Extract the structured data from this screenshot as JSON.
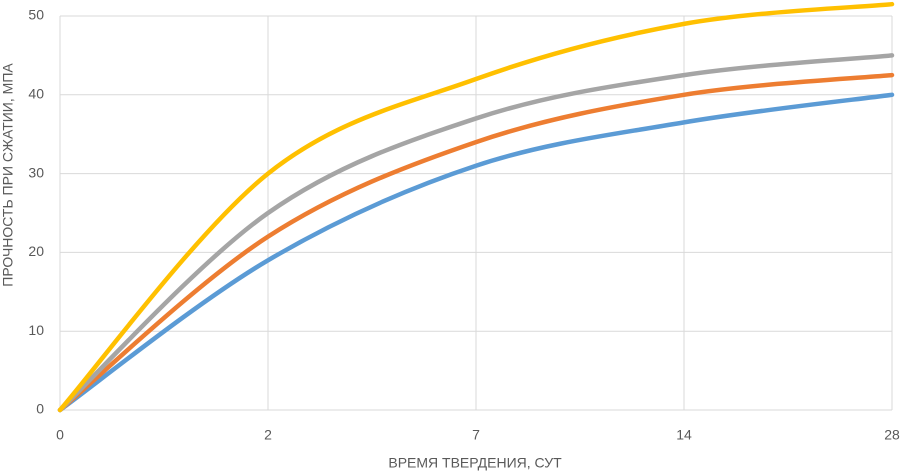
{
  "chart_data": {
    "type": "line",
    "x_label": "ВРЕМЯ ТВЕРДЕНИЯ, СУТ",
    "y_label": "ПРОЧНОСТЬ ПРИ СЖАТИИ, МПА",
    "categories": [
      "0",
      "2",
      "7",
      "14",
      "28"
    ],
    "series": [
      {
        "color": "#5b9bd5",
        "values": [
          0,
          19,
          31,
          36.5,
          40
        ]
      },
      {
        "color": "#ed7d31",
        "values": [
          0,
          22,
          34,
          40,
          42.5
        ]
      },
      {
        "color": "#a5a5a5",
        "values": [
          0,
          25,
          37,
          42.5,
          45
        ]
      },
      {
        "color": "#ffc000",
        "values": [
          0,
          30,
          42,
          49,
          51.5
        ]
      }
    ],
    "ylim": [
      0,
      50
    ],
    "yticks": [
      0,
      10,
      20,
      30,
      40,
      50
    ],
    "grid": true,
    "smooth": true
  }
}
